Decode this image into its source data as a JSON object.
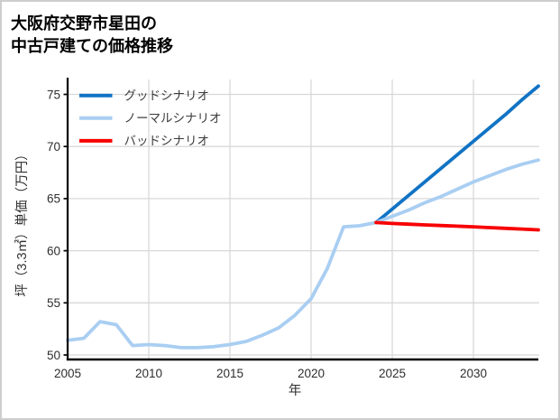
{
  "title": {
    "line1": "大阪府交野市星田の",
    "line2": "中古戸建ての価格推移"
  },
  "colors": {
    "good": "#1173c4",
    "normal": "#a9cef2",
    "bad": "#f90000",
    "grid": "#d8d8d8",
    "axis": "#000000",
    "tick_text": "#2e2e2e",
    "legend_text": "#3c3c3c",
    "frame_border": "#cdcdcd",
    "background": "#ffffff"
  },
  "legend": [
    {
      "label": "グッドシナリオ",
      "color_key": "good"
    },
    {
      "label": "ノーマルシナリオ",
      "color_key": "normal"
    },
    {
      "label": "バッドシナリオ",
      "color_key": "bad"
    }
  ],
  "chart_data": {
    "type": "line",
    "title": "大阪府交野市星田の中古戸建ての価格推移",
    "xlabel": "年",
    "ylabel": "坪（3.3㎡）単価（万円）",
    "xlim": [
      2005,
      2034
    ],
    "ylim": [
      49.6,
      76.4
    ],
    "x_ticks": [
      2005,
      2010,
      2015,
      2020,
      2025,
      2030
    ],
    "y_ticks": [
      50,
      55,
      60,
      65,
      70,
      75
    ],
    "grid": true,
    "legend_position": "upper-left-inside",
    "series": [
      {
        "name": "グッドシナリオ",
        "color_key": "good",
        "x": [
          2024,
          2025,
          2026,
          2027,
          2028,
          2029,
          2030,
          2031,
          2032,
          2033,
          2034
        ],
        "values": [
          62.7,
          64.0,
          65.3,
          66.6,
          67.9,
          69.2,
          70.5,
          71.8,
          73.1,
          74.5,
          75.8
        ]
      },
      {
        "name": "ノーマルシナリオ",
        "color_key": "normal",
        "x": [
          2005,
          2006,
          2007,
          2008,
          2009,
          2010,
          2011,
          2012,
          2013,
          2014,
          2015,
          2016,
          2017,
          2018,
          2019,
          2020,
          2021,
          2022,
          2023,
          2024,
          2025,
          2026,
          2027,
          2028,
          2029,
          2030,
          2031,
          2032,
          2033,
          2034
        ],
        "values": [
          51.4,
          51.6,
          53.2,
          52.9,
          50.9,
          51.0,
          50.9,
          50.7,
          50.7,
          50.8,
          51.0,
          51.3,
          51.9,
          52.6,
          53.8,
          55.4,
          58.3,
          62.3,
          62.4,
          62.7,
          63.3,
          63.9,
          64.6,
          65.2,
          65.9,
          66.6,
          67.2,
          67.8,
          68.3,
          68.7
        ]
      },
      {
        "name": "バッドシナリオ",
        "color_key": "bad",
        "x": [
          2024,
          2025,
          2026,
          2027,
          2028,
          2029,
          2030,
          2031,
          2032,
          2033,
          2034
        ],
        "values": [
          62.7,
          62.62,
          62.55,
          62.48,
          62.42,
          62.36,
          62.3,
          62.22,
          62.15,
          62.08,
          62.0
        ]
      }
    ]
  }
}
